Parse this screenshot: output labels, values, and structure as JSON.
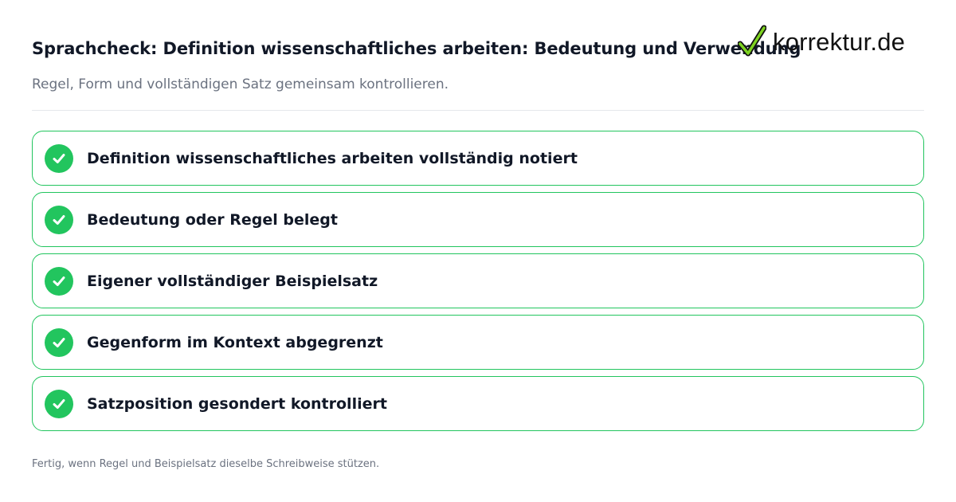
{
  "header": {
    "title": "Sprachcheck: Definition wissenschaftliches arbeiten: Bedeutung und Verwendung",
    "subtitle": "Regel, Form und vollständigen Satz gemeinsam kontrollieren."
  },
  "logo": {
    "text": "korrektur.de",
    "icon": "checkmark-icon",
    "accent_color": "#7ed321"
  },
  "checklist": {
    "check_color": "#22c55e",
    "items": [
      {
        "label": "Definition wissenschaftliches arbeiten vollständig notiert",
        "checked": true
      },
      {
        "label": "Bedeutung oder Regel belegt",
        "checked": true
      },
      {
        "label": "Eigener vollständiger Beispielsatz",
        "checked": true
      },
      {
        "label": "Gegenform im Kontext abgegrenzt",
        "checked": true
      },
      {
        "label": "Satzposition gesondert kontrolliert",
        "checked": true
      }
    ]
  },
  "footer": {
    "note": "Fertig, wenn Regel und Beispielsatz dieselbe Schreibweise stützen."
  }
}
